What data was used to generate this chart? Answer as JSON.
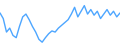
{
  "y_values": [
    62,
    52,
    28,
    35,
    22,
    18,
    38,
    55,
    60,
    50,
    38,
    28,
    15,
    10,
    18,
    25,
    30,
    28,
    35,
    40,
    45,
    50,
    60,
    72,
    55,
    65,
    75,
    60,
    68,
    58,
    65,
    52,
    60,
    68,
    58,
    65,
    55,
    62
  ],
  "line_color": "#4da6ff",
  "line_width": 1.0,
  "background_color": "#ffffff",
  "ylim": [
    5,
    85
  ],
  "xlim": [
    0,
    37
  ]
}
